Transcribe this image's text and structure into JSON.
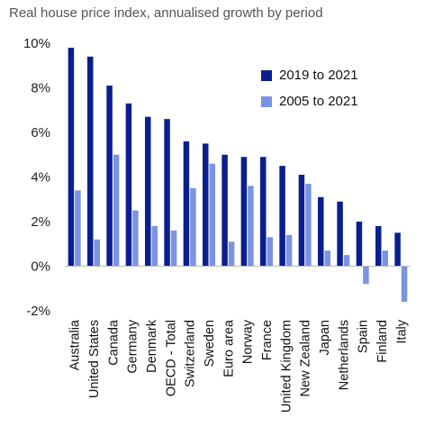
{
  "chart_data": {
    "type": "bar",
    "title": "Real house price index, annualised growth by period",
    "categories": [
      "Australia",
      "United States",
      "Canada",
      "Germany",
      "Denmark",
      "OECD - Total",
      "Switzerland",
      "Sweden",
      "Euro area",
      "Norway",
      "France",
      "United Kingdom",
      "New Zealand",
      "Japan",
      "Netherlands",
      "Spain",
      "Finland",
      "Italy"
    ],
    "series": [
      {
        "name": "2019 to 2021",
        "color": "#0a1f8f",
        "values": [
          9.8,
          9.4,
          8.1,
          7.3,
          6.7,
          6.6,
          5.6,
          5.5,
          5.0,
          4.9,
          4.9,
          4.5,
          4.1,
          3.1,
          2.9,
          2.0,
          1.8,
          1.5
        ]
      },
      {
        "name": "2005 to 2021",
        "color": "#7b93e3",
        "values": [
          3.4,
          1.2,
          5.0,
          2.5,
          1.8,
          1.6,
          3.5,
          4.6,
          1.1,
          3.6,
          1.3,
          1.4,
          3.7,
          0.7,
          0.5,
          -0.8,
          0.7,
          -1.6
        ]
      }
    ],
    "ylim": [
      -2,
      10
    ],
    "yticks": [
      -2,
      0,
      2,
      4,
      6,
      8,
      10
    ],
    "ytick_labels": [
      "-2%",
      "0%",
      "2%",
      "4%",
      "6%",
      "8%",
      "10%"
    ],
    "grid": false,
    "legend_position": "top-right"
  }
}
